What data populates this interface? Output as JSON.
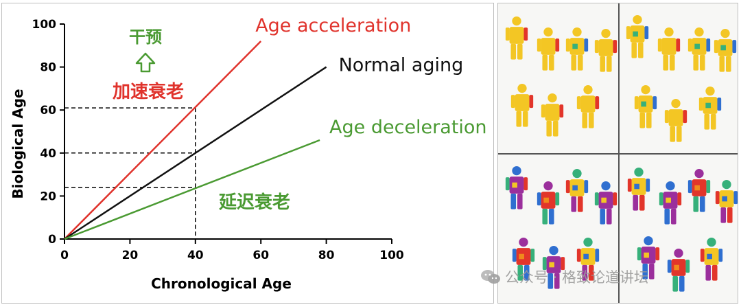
{
  "chart_data": {
    "type": "line",
    "xlabel": "Chronological Age",
    "ylabel": "Biological Age",
    "xlim": [
      0,
      100
    ],
    "ylim": [
      0,
      100
    ],
    "x_ticks": [
      "0",
      "20",
      "40",
      "60",
      "80",
      "100"
    ],
    "y_ticks": [
      "0",
      "20",
      "40",
      "60",
      "80",
      "100"
    ],
    "grid": false,
    "series": [
      {
        "name": "Age acceleration",
        "color": "#e0332c",
        "x": [
          0,
          60
        ],
        "y": [
          0,
          92
        ]
      },
      {
        "name": "Normal aging",
        "color": "#111111",
        "x": [
          0,
          80
        ],
        "y": [
          0,
          80
        ]
      },
      {
        "name": "Age deceleration",
        "color": "#4a9a32",
        "x": [
          0,
          78
        ],
        "y": [
          0,
          46
        ]
      }
    ],
    "reference_x": 40,
    "reference_y": [
      61,
      40,
      24
    ],
    "annotations": {
      "intervene": "干预",
      "accelerated_aging": "加速衰老",
      "delayed_aging": "延迟衰老"
    }
  },
  "watermark": "公众号 · 格致论道讲坛",
  "colors": {
    "red": "#e0332c",
    "green": "#4a9a32",
    "black": "#111111"
  }
}
